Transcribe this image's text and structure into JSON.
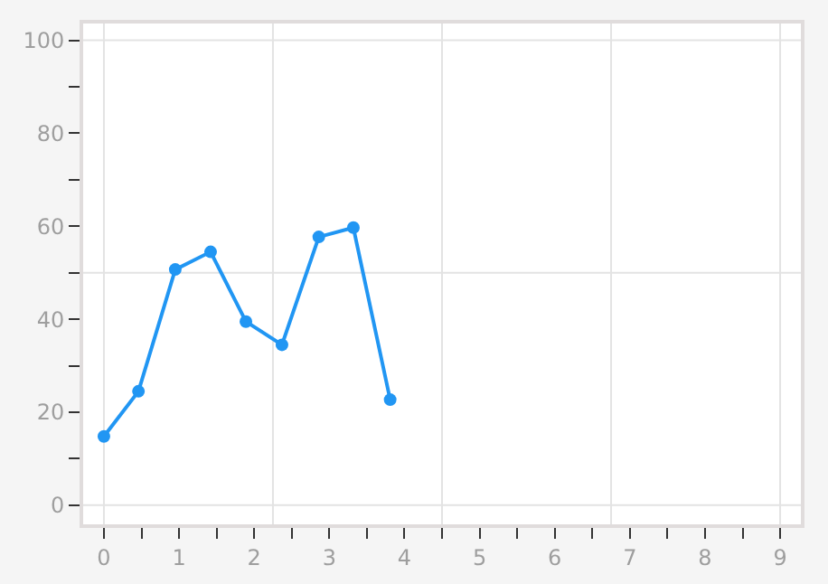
{
  "chart_data": {
    "type": "line",
    "x": [
      0,
      0.46,
      0.95,
      1.42,
      1.89,
      2.37,
      2.86,
      3.32,
      3.81
    ],
    "series": [
      {
        "color": "#2196f3",
        "values": [
          14.8,
          24.5,
          50.7,
          54.5,
          39.5,
          34.5,
          57.7,
          59.7,
          22.7
        ]
      }
    ],
    "xlim": [
      -0.3,
      9.3
    ],
    "ylim": [
      -4.5,
      104
    ],
    "xticks": [
      0,
      {
        "value": 0.5,
        "label": null
      },
      1,
      {
        "value": 1.5,
        "label": null
      },
      2,
      {
        "value": 2.5,
        "label": null
      },
      3,
      {
        "value": 3.5,
        "label": null
      },
      4,
      {
        "value": 4.5,
        "label": null
      },
      5,
      {
        "value": 5.5,
        "label": null
      },
      6,
      {
        "value": 6.5,
        "label": null
      },
      7,
      {
        "value": 7.5,
        "label": null
      },
      8,
      {
        "value": 8.5,
        "label": null
      },
      9
    ],
    "yticks": [
      0,
      {
        "value": 10,
        "label": null
      },
      20,
      {
        "value": 30,
        "label": null
      },
      40,
      {
        "value": 50,
        "label": null
      },
      60,
      {
        "value": 70,
        "label": null
      },
      80,
      {
        "value": 90,
        "label": null
      },
      100
    ],
    "grid": true,
    "marker": "circle",
    "line_style": "solid"
  }
}
